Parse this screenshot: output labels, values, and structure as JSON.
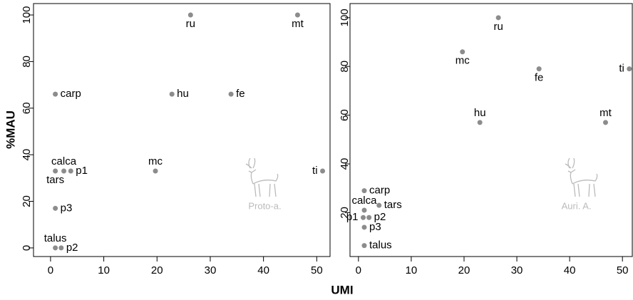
{
  "chart_data": [
    {
      "type": "scatter",
      "ylabel": "%MAU",
      "xlabel": "UMI",
      "annotation": "Proto-a.",
      "color": "#8c8c8c",
      "labels": [
        "ru",
        "mt",
        "carp",
        "hu",
        "fe",
        "tars",
        "calca",
        "p1",
        "mc",
        "ti",
        "p3",
        "talus",
        "p2"
      ],
      "x": [
        26.3,
        46.4,
        0.9,
        22.8,
        33.9,
        0.9,
        2.5,
        3.8,
        19.7,
        51.1,
        0.9,
        0.9,
        2.0
      ],
      "y": [
        100,
        100,
        66,
        66,
        66,
        33,
        33,
        33,
        33,
        33,
        17,
        0,
        0
      ],
      "xlim": [
        -3.2,
        52.5
      ],
      "ylim": [
        -3.7,
        104.9
      ],
      "xticks": [
        0,
        10,
        20,
        30,
        40,
        50
      ],
      "yticks": [
        0,
        20,
        40,
        60,
        80,
        100
      ]
    },
    {
      "type": "scatter",
      "annotation": "Auri. A.",
      "color": "#8c8c8c",
      "labels": [
        "ru",
        "mc",
        "fe",
        "ti",
        "hu",
        "mt",
        "carp",
        "calca",
        "tars",
        "p1",
        "p2",
        "p3",
        "talus"
      ],
      "x": [
        26.5,
        19.7,
        34.2,
        51.3,
        23.0,
        46.8,
        1.1,
        1.1,
        3.9,
        0.9,
        2.0,
        1.1,
        1.1
      ],
      "y": [
        100,
        86,
        79,
        79,
        57,
        57,
        29,
        21,
        23,
        18,
        18,
        14,
        6.5
      ],
      "xlim": [
        -1.6,
        52
      ],
      "ylim": [
        2,
        105.8
      ],
      "xticks": [
        0,
        10,
        20,
        30,
        40,
        50
      ],
      "yticks": [
        20,
        40,
        60,
        80,
        100
      ]
    }
  ]
}
